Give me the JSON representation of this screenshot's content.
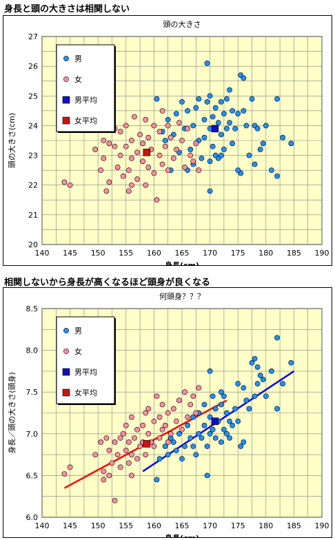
{
  "headings": {
    "top": "身長と頭の大きさは相関しない",
    "bottom": "相関しないから身長が高くなるほど頭身が良くなる"
  },
  "colors": {
    "plot_bg": "#ffffc8",
    "male": "#1e90ff",
    "female": "#ff8da1",
    "male_avg": "#1010c0",
    "female_avg": "#d01010",
    "female_line": "#ff0000",
    "male_line": "#0000ff",
    "grid": "#808080"
  },
  "chart_data": [
    {
      "type": "scatter",
      "title": "頭の大きさ",
      "xlabel": "身長(cm)",
      "ylabel": "頭の大きさ(cm)",
      "xlim": [
        140,
        190
      ],
      "ylim": [
        20,
        27
      ],
      "xticks": [
        "140",
        "145",
        "150",
        "155",
        "160",
        "165",
        "170",
        "175",
        "180",
        "185",
        "190"
      ],
      "yticks": [
        "20",
        "21",
        "22",
        "23",
        "24",
        "25",
        "26",
        "27"
      ],
      "grid": true,
      "legend_position": "top-left",
      "legend": [
        "男",
        "女",
        "男平均",
        "女平均"
      ],
      "series": [
        {
          "name": "男",
          "marker": "circle",
          "points": [
            [
              160.5,
              24.9
            ],
            [
              161.5,
              23.8
            ],
            [
              162,
              23.5
            ],
            [
              162.5,
              24.2
            ],
            [
              163,
              22.5
            ],
            [
              163.5,
              23.7
            ],
            [
              164,
              24.4
            ],
            [
              164.5,
              23.1
            ],
            [
              165,
              24.8
            ],
            [
              165.5,
              23.9
            ],
            [
              166,
              24.5
            ],
            [
              166,
              22.5
            ],
            [
              166.5,
              23.2
            ],
            [
              167,
              24.0
            ],
            [
              167,
              22.7
            ],
            [
              167.5,
              24.6
            ],
            [
              168,
              23.5
            ],
            [
              168,
              24.9
            ],
            [
              168.5,
              22.9
            ],
            [
              169,
              24.2
            ],
            [
              169,
              23.6
            ],
            [
              169.5,
              26.1
            ],
            [
              169.5,
              24.8
            ],
            [
              170,
              22.8
            ],
            [
              170,
              23.9
            ],
            [
              170,
              25.0
            ],
            [
              170.5,
              24.3
            ],
            [
              170.5,
              23.3
            ],
            [
              171,
              24.6
            ],
            [
              171,
              23.0
            ],
            [
              171.5,
              24.1
            ],
            [
              171.5,
              22.9
            ],
            [
              172,
              24.8
            ],
            [
              172,
              23.7
            ],
            [
              172.5,
              24.4
            ],
            [
              172.5,
              23.2
            ],
            [
              173,
              24.9
            ],
            [
              173,
              23.9
            ],
            [
              173.5,
              25.2
            ],
            [
              173.5,
              24.1
            ],
            [
              174,
              24.5
            ],
            [
              174,
              23.4
            ],
            [
              174.5,
              23.9
            ],
            [
              175,
              24.4
            ],
            [
              175.5,
              25.7
            ],
            [
              175.5,
              22.4
            ],
            [
              176,
              25.6
            ],
            [
              176,
              24.5
            ],
            [
              176.5,
              24.0
            ],
            [
              177,
              23.0
            ],
            [
              177.5,
              24.9
            ],
            [
              178,
              24.0
            ],
            [
              178,
              22.7
            ],
            [
              178.5,
              23.9
            ],
            [
              179,
              23.2
            ],
            [
              179.5,
              23.4
            ],
            [
              180,
              24.0
            ],
            [
              181,
              22.5
            ],
            [
              182,
              24.9
            ],
            [
              182,
              22.3
            ],
            [
              183,
              23.6
            ],
            [
              184.5,
              23.4
            ],
            [
              175,
              22.5
            ],
            [
              172,
              23.0
            ],
            [
              170,
              21.8
            ]
          ]
        },
        {
          "name": "女",
          "marker": "circle",
          "points": [
            [
              144,
              22.1
            ],
            [
              145,
              22.0
            ],
            [
              149.5,
              23.2
            ],
            [
              150.5,
              22.5
            ],
            [
              151,
              23.5
            ],
            [
              151.5,
              21.8
            ],
            [
              152,
              23.4
            ],
            [
              152,
              22.1
            ],
            [
              152.5,
              24.7
            ],
            [
              153,
              23.3
            ],
            [
              153.5,
              22.6
            ],
            [
              154,
              23.8
            ],
            [
              154,
              23.0
            ],
            [
              154.5,
              22.3
            ],
            [
              155,
              24.0
            ],
            [
              155,
              23.3
            ],
            [
              155.5,
              22.5
            ],
            [
              155.5,
              21.8
            ],
            [
              156,
              23.5
            ],
            [
              156,
              22.9
            ],
            [
              156.5,
              24.3
            ],
            [
              157,
              23.1
            ],
            [
              157,
              22.2
            ],
            [
              157.5,
              23.7
            ],
            [
              158,
              22.8
            ],
            [
              158,
              23.4
            ],
            [
              158.5,
              24.2
            ],
            [
              158.5,
              22.0
            ],
            [
              159,
              23.6
            ],
            [
              159,
              22.6
            ],
            [
              159.5,
              23.2
            ],
            [
              160,
              24.0
            ],
            [
              160,
              22.4
            ],
            [
              160.5,
              21.5
            ],
            [
              161,
              23.8
            ],
            [
              161,
              23.0
            ],
            [
              161.5,
              24.5
            ],
            [
              161.5,
              22.7
            ],
            [
              162,
              23.3
            ],
            [
              162.5,
              24.0
            ],
            [
              162.5,
              22.5
            ],
            [
              163,
              23.6
            ],
            [
              163.5,
              22.9
            ],
            [
              164,
              23.2
            ],
            [
              164.5,
              24.1
            ],
            [
              165,
              23.5
            ],
            [
              165.5,
              22.6
            ],
            [
              166,
              23.9
            ],
            [
              166.5,
              23.0
            ],
            [
              167,
              22.8
            ],
            [
              167.5,
              23.4
            ],
            [
              168,
              22.5
            ],
            [
              153,
              23.9
            ],
            [
              151,
              22.9
            ],
            [
              156,
              22.0
            ]
          ]
        },
        {
          "name": "男平均",
          "marker": "square",
          "points": [
            [
              170.9,
              23.9
            ]
          ]
        },
        {
          "name": "女平均",
          "marker": "square",
          "points": [
            [
              158.7,
              23.1
            ]
          ]
        }
      ]
    },
    {
      "type": "scatter",
      "title": "何頭身？？？",
      "xlabel": "身長(cm)",
      "ylabel": "身長／頭の大きさ(頭身)",
      "xlim": [
        140,
        190
      ],
      "ylim": [
        6.0,
        8.5
      ],
      "xticks": [
        "140",
        "145",
        "150",
        "155",
        "160",
        "165",
        "170",
        "175",
        "180",
        "185",
        "190"
      ],
      "yticks": [
        "6.0",
        "6.5",
        "7.0",
        "7.5",
        "8.0",
        "8.5"
      ],
      "grid": true,
      "legend_position": "top-left",
      "legend": [
        "男",
        "女",
        "男平均",
        "女平均"
      ],
      "series": [
        {
          "name": "男",
          "marker": "circle",
          "points": [
            [
              160.5,
              6.45
            ],
            [
              161,
              6.7
            ],
            [
              162,
              6.85
            ],
            [
              162.5,
              6.75
            ],
            [
              163,
              6.95
            ],
            [
              163.5,
              6.9
            ],
            [
              164,
              6.8
            ],
            [
              164.5,
              7.0
            ],
            [
              165,
              6.7
            ],
            [
              165.5,
              6.85
            ],
            [
              166,
              7.1
            ],
            [
              166.5,
              6.95
            ],
            [
              167,
              7.2
            ],
            [
              167,
              6.85
            ],
            [
              167.5,
              6.75
            ],
            [
              168,
              7.0
            ],
            [
              168,
              7.25
            ],
            [
              168.5,
              6.95
            ],
            [
              169,
              7.1
            ],
            [
              169,
              7.35
            ],
            [
              169.5,
              6.5
            ],
            [
              169.5,
              6.85
            ],
            [
              170,
              7.0
            ],
            [
              170,
              7.2
            ],
            [
              170,
              7.75
            ],
            [
              170.5,
              7.05
            ],
            [
              170.5,
              7.45
            ],
            [
              171,
              6.95
            ],
            [
              171,
              7.3
            ],
            [
              171.5,
              7.15
            ],
            [
              172,
              6.9
            ],
            [
              172,
              7.35
            ],
            [
              172.5,
              7.05
            ],
            [
              172.5,
              7.45
            ],
            [
              173,
              7.0
            ],
            [
              173,
              7.25
            ],
            [
              173.5,
              6.95
            ],
            [
              173.5,
              7.15
            ],
            [
              174,
              7.1
            ],
            [
              174.5,
              7.3
            ],
            [
              175,
              7.15
            ],
            [
              175.5,
              6.85
            ],
            [
              176,
              7.55
            ],
            [
              176,
              6.9
            ],
            [
              176.5,
              7.4
            ],
            [
              177,
              7.3
            ],
            [
              177.5,
              7.85
            ],
            [
              178,
              7.45
            ],
            [
              178,
              7.9
            ],
            [
              178.5,
              7.6
            ],
            [
              179,
              7.7
            ],
            [
              179.5,
              7.65
            ],
            [
              180,
              7.45
            ],
            [
              181,
              7.75
            ],
            [
              182,
              8.15
            ],
            [
              182,
              7.3
            ],
            [
              183,
              7.6
            ],
            [
              184.5,
              7.85
            ],
            [
              175,
              7.6
            ],
            [
              172,
              7.5
            ],
            [
              178.5,
              7.8
            ]
          ]
        },
        {
          "name": "女",
          "marker": "circle",
          "points": [
            [
              144,
              6.52
            ],
            [
              145,
              6.6
            ],
            [
              149.5,
              6.75
            ],
            [
              150.5,
              6.9
            ],
            [
              151,
              6.45
            ],
            [
              151.5,
              6.95
            ],
            [
              152,
              6.5
            ],
            [
              152,
              6.8
            ],
            [
              152.5,
              6.65
            ],
            [
              153,
              6.2
            ],
            [
              153.5,
              6.75
            ],
            [
              154,
              6.95
            ],
            [
              154,
              6.6
            ],
            [
              154.5,
              7.0
            ],
            [
              155,
              6.8
            ],
            [
              155,
              7.1
            ],
            [
              155.5,
              6.65
            ],
            [
              155.5,
              6.9
            ],
            [
              156,
              7.2
            ],
            [
              156,
              6.75
            ],
            [
              156.5,
              6.95
            ],
            [
              157,
              7.05
            ],
            [
              157,
              6.7
            ],
            [
              157.5,
              6.85
            ],
            [
              158,
              7.1
            ],
            [
              158,
              6.9
            ],
            [
              158.5,
              7.25
            ],
            [
              158.5,
              6.75
            ],
            [
              159,
              7.0
            ],
            [
              159,
              7.3
            ],
            [
              159.5,
              6.9
            ],
            [
              160,
              7.15
            ],
            [
              160,
              6.85
            ],
            [
              160.5,
              7.45
            ],
            [
              161,
              6.95
            ],
            [
              161,
              7.2
            ],
            [
              161.5,
              7.05
            ],
            [
              161.5,
              7.35
            ],
            [
              162,
              7.1
            ],
            [
              162.5,
              6.9
            ],
            [
              162.5,
              7.25
            ],
            [
              163,
              7.0
            ],
            [
              163.5,
              7.3
            ],
            [
              164,
              7.15
            ],
            [
              164.5,
              7.4
            ],
            [
              165,
              7.05
            ],
            [
              165.5,
              7.5
            ],
            [
              166,
              7.2
            ],
            [
              166.5,
              7.35
            ],
            [
              167,
              7.45
            ],
            [
              167.5,
              7.25
            ],
            [
              168,
              7.55
            ],
            [
              153,
              6.9
            ],
            [
              151,
              6.55
            ],
            [
              156,
              6.5
            ]
          ]
        },
        {
          "name": "男平均",
          "marker": "square",
          "points": [
            [
              170.9,
              7.15
            ]
          ]
        },
        {
          "name": "女平均",
          "marker": "square",
          "points": [
            [
              158.7,
              6.88
            ]
          ]
        }
      ],
      "trendlines": [
        {
          "name": "女",
          "from": [
            144,
            6.35
          ],
          "to": [
            173,
            7.4
          ]
        },
        {
          "name": "男",
          "from": [
            158,
            6.55
          ],
          "to": [
            185,
            7.75
          ]
        }
      ]
    }
  ]
}
